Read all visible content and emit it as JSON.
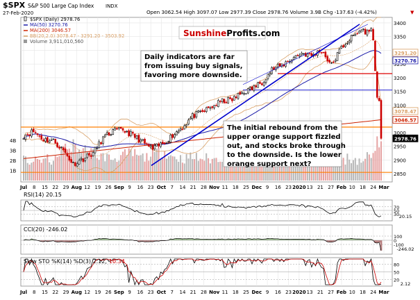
{
  "header": {
    "symbol": "$SPX",
    "name": "S&P 500 Large Cap Index",
    "exchange": "INDX",
    "date": "27-Feb-2020",
    "ohlc": "Open 3062.54  High 3097.07  Low 2977.39  Close 2978.76  Volume 3.9B  Chg -137.63 (-4.42%)",
    "chg_arrow": "▼"
  },
  "watermark": {
    "brand_a": "Sunshine",
    "brand_b": "Profits",
    "brand_c": ".com"
  },
  "legend": [
    {
      "label": "$SPX (Daily) 2978.76",
      "color": "#000000",
      "marker": "candle"
    },
    {
      "label": "MA(50) 3270.76",
      "color": "#1a1aa8",
      "marker": "line"
    },
    {
      "label": "MA(200) 3046.57",
      "color": "#cc2200",
      "marker": "line"
    },
    {
      "label": "BB(20,2.0) 3078.47 - 3291.20 - 3503.92",
      "color": "#d9a066",
      "marker": "line"
    },
    {
      "label": "Volume 3,911,010,560",
      "color": "#999999",
      "marker": "box"
    }
  ],
  "annotations": {
    "top_lines": [
      "Daily indicators are far",
      "from issuing buy signals,",
      "favoring more downside."
    ],
    "bottom_lines": [
      "The initial rebound from the",
      "upper orange support fizzled",
      "out, and stocks broke through",
      "to the downside. Is the lower",
      "orange support next?"
    ]
  },
  "price_labels": {
    "ticks": [
      "3400",
      "3350",
      "3300",
      "3250",
      "3200",
      "3150",
      "3100",
      "3050",
      "3000",
      "2950",
      "2900",
      "2850"
    ],
    "tags": [
      {
        "text": "3291.20",
        "color": "#d9a066"
      },
      {
        "text": "3270.76",
        "color": "#1a1aa8"
      },
      {
        "text": "3078.47",
        "color": "#d9a066"
      },
      {
        "text": "3046.57",
        "color": "#cc2200"
      },
      {
        "text": "2978.76",
        "color": "#000000"
      }
    ]
  },
  "volume_labels": [
    "4B",
    "3B",
    "2B",
    "1B"
  ],
  "x_labels": [
    "Jul",
    "8",
    "15",
    "22",
    "29",
    "Aug",
    "12",
    "19",
    "26",
    "Sep",
    "9",
    "16",
    "23",
    "Oct",
    "7",
    "14",
    "21",
    "28",
    "Nov",
    "11",
    "18",
    "25",
    "Dec",
    "9",
    "16",
    "23",
    "2020",
    "13",
    "21",
    "27",
    "Feb",
    "10",
    "18",
    "24",
    "Mar"
  ],
  "rsi": {
    "title": "RSI(14) 20.15",
    "ticks": [
      "70",
      "50",
      "30"
    ],
    "tag": "20.15"
  },
  "cci": {
    "title": "CCI(20) -246.02",
    "ticks": [
      "100",
      "0",
      "-100"
    ],
    "tag": "-246.02"
  },
  "sto": {
    "title": "Slow STO %K(14) %D(3) 2.12,",
    "title_b": "10.34",
    "ticks": [
      "80",
      "50",
      "20"
    ],
    "tag": "2.12"
  },
  "colors": {
    "up": "#000000",
    "down": "#cc0000",
    "ma50": "#1a1aa8",
    "ma200": "#cc2200",
    "bb": "#d9a066",
    "support": "#ff7f00",
    "resistance": "#dd0000",
    "channel": "#0000cc",
    "volume_up": "#b8b8b8",
    "volume_down": "#e6a3a3",
    "osc_fill": "#7fa96f",
    "osc_fill_neg": "#a56060"
  },
  "chart_data": {
    "type": "candlestick",
    "title": "$SPX S&P 500 Large Cap Index (Daily)",
    "ylim": [
      2820,
      3420
    ],
    "weekly_closes": [
      2990,
      3005,
      2975,
      2970,
      2935,
      2885,
      2905,
      2925,
      2980,
      3005,
      3010,
      2990,
      2965,
      2940,
      2960,
      2990,
      3020,
      3060,
      3075,
      3095,
      3115,
      3120,
      3145,
      3160,
      3185,
      3230,
      3245,
      3270,
      3290,
      3280,
      3300,
      3245,
      3310,
      3345,
      3375,
      3360,
      2978.76
    ],
    "volume_billions": [
      2.0,
      1.9,
      2.1,
      2.0,
      3.1,
      3.4,
      3.0,
      2.7,
      2.4,
      2.2,
      2.5,
      2.6,
      2.3,
      2.6,
      2.9,
      2.4,
      2.2,
      2.3,
      2.2,
      2.1,
      2.3,
      2.1,
      2.0,
      2.2,
      2.4,
      1.6,
      2.1,
      2.0,
      2.2,
      2.3,
      2.4,
      2.5,
      2.1,
      2.2,
      2.0,
      2.4,
      3.9
    ],
    "rsi_last": 20.15,
    "cci_last": -246.02,
    "sto_k_last": 2.12,
    "sto_d_last": 10.34,
    "ma50_last": 3270.76,
    "ma200_last": 3046.57,
    "bb_lower": 3078.47,
    "bb_mid": 3291.2,
    "bb_upper": 3503.92,
    "supports": [
      3020,
      2855
    ],
    "resistances": [
      3215,
      3155
    ]
  }
}
